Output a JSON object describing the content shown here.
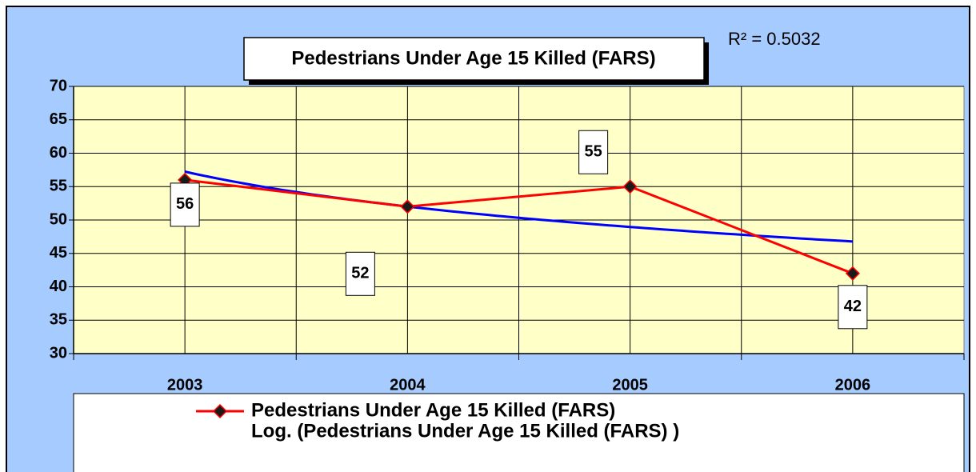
{
  "chart_data": {
    "type": "line",
    "title": "Pedestrians Under Age 15 Killed (FARS)",
    "annotation": "R² = 0.5032",
    "categories": [
      "2003",
      "2004",
      "2005",
      "2006"
    ],
    "series": [
      {
        "name": "Pedestrians Under Age 15 Killed (FARS)",
        "color": "#ff0000",
        "marker_color": "#1a1a1a",
        "values": [
          56,
          52,
          55,
          42
        ]
      },
      {
        "name": "Log. (Pedestrians Under Age 15 Killed (FARS) )",
        "color": "#0000ff",
        "trendline": "log"
      }
    ],
    "ylim": [
      30,
      70
    ],
    "yticks": [
      30,
      35,
      40,
      45,
      50,
      55,
      60,
      65,
      70
    ],
    "grid": true,
    "legend": "bottom",
    "background": "#a6cbff",
    "plot_background": "#ffffc8"
  }
}
